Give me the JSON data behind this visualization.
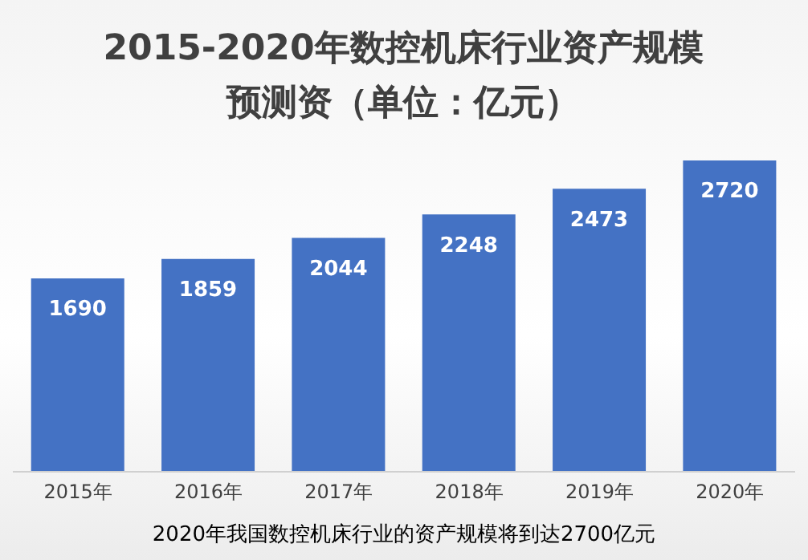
{
  "chart_data": {
    "type": "bar",
    "title": "2015-2020年数控机床行业资产规模预测资（单位：亿元）",
    "categories": [
      "2015年",
      "2016年",
      "2017年",
      "2018年",
      "2019年",
      "2020年"
    ],
    "values": [
      1690,
      1859,
      2044,
      2248,
      2473,
      2720
    ],
    "color": "#4472c4",
    "data_labels": true,
    "annotations": [
      "2020年我国数控机床行业的资产规模将到达2700亿元"
    ]
  }
}
